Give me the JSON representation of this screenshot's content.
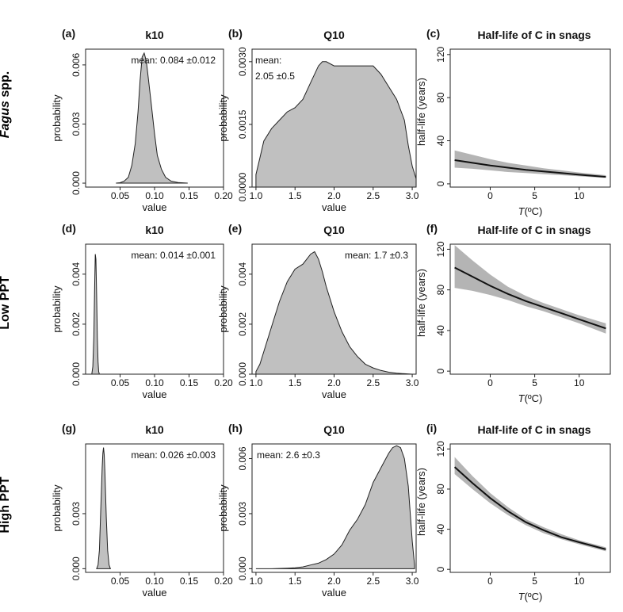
{
  "row_labels": [
    {
      "italic": "Fagus",
      "text": " spp."
    },
    {
      "italic": "",
      "text": "Low PPT"
    },
    {
      "italic": "",
      "text": "High PPT"
    }
  ],
  "chart_data": [
    {
      "id": "a",
      "panel_label": "(a)",
      "type": "area",
      "title": "k10",
      "xlabel": "value",
      "ylabel": "probability",
      "annotation": [
        "mean: 0.084 ±0.012"
      ],
      "xlim": [
        0.0,
        0.2
      ],
      "ylim": [
        -0.0002,
        0.0068
      ],
      "xticks": [
        0.05,
        0.1,
        0.15,
        0.2
      ],
      "xtick_labels": [
        "0.05",
        "0.10",
        "0.15",
        "0.20"
      ],
      "yticks": [
        0.0,
        0.003,
        0.006
      ],
      "ytick_labels": [
        "0.000",
        "0.003",
        "0.006"
      ],
      "x": [
        0.044,
        0.05,
        0.056,
        0.062,
        0.067,
        0.072,
        0.076,
        0.079,
        0.082,
        0.085,
        0.088,
        0.091,
        0.095,
        0.1,
        0.104,
        0.11,
        0.116,
        0.124,
        0.134,
        0.148
      ],
      "y": [
        0.0,
        2e-05,
        0.0001,
        0.0003,
        0.0009,
        0.002,
        0.0036,
        0.0052,
        0.0064,
        0.0066,
        0.0062,
        0.0053,
        0.0041,
        0.0025,
        0.0014,
        0.0007,
        0.0003,
        0.0001,
        3e-05,
        0.0
      ]
    },
    {
      "id": "b",
      "panel_label": "(b)",
      "type": "area",
      "title": "Q10",
      "xlabel": "value",
      "ylabel": "probability",
      "annotation": [
        "mean:",
        "2.05 ±0.5"
      ],
      "xlim": [
        0.95,
        3.05
      ],
      "ylim": [
        0.0,
        0.0033
      ],
      "xticks": [
        1.0,
        1.5,
        2.0,
        2.5,
        3.0
      ],
      "xtick_labels": [
        "1.0",
        "1.5",
        "2.0",
        "2.5",
        "3.0"
      ],
      "yticks": [
        0.0,
        0.0015,
        0.003
      ],
      "ytick_labels": [
        "0.0000",
        "0.0015",
        "0.0030"
      ],
      "x": [
        1.0,
        1.05,
        1.1,
        1.2,
        1.3,
        1.4,
        1.5,
        1.6,
        1.7,
        1.8,
        1.85,
        1.9,
        2.0,
        2.1,
        2.2,
        2.3,
        2.4,
        2.5,
        2.6,
        2.7,
        2.8,
        2.9,
        2.95,
        3.0,
        3.05
      ],
      "y": [
        0.0003,
        0.0007,
        0.0011,
        0.0014,
        0.0016,
        0.0018,
        0.0019,
        0.0021,
        0.0025,
        0.0029,
        0.003,
        0.003,
        0.0029,
        0.0029,
        0.0029,
        0.0029,
        0.0029,
        0.0029,
        0.0027,
        0.0024,
        0.0021,
        0.0016,
        0.001,
        0.0005,
        0.0002
      ]
    },
    {
      "id": "c",
      "panel_label": "(c)",
      "type": "line",
      "title": "Half-life of C in snags",
      "xlabel": "T(ºC)",
      "ylabel": "half-life (years)",
      "xlim": [
        -4.5,
        13.5
      ],
      "ylim": [
        -3,
        125
      ],
      "xticks": [
        0,
        5,
        10
      ],
      "xtick_labels": [
        "0",
        "5",
        "10"
      ],
      "yticks": [
        0,
        40,
        80,
        120
      ],
      "ytick_labels": [
        "0",
        "40",
        "80",
        "120"
      ],
      "x": [
        -4,
        -2,
        0,
        2,
        4,
        6,
        8,
        10,
        13
      ],
      "y": [
        22,
        19.5,
        17,
        15,
        13,
        11.5,
        10,
        8.5,
        6.5
      ],
      "lower": [
        15,
        14,
        12.5,
        11,
        10,
        9,
        8,
        7,
        5.5
      ],
      "upper": [
        31,
        27,
        23,
        19.5,
        17,
        14.5,
        12.5,
        10.5,
        8
      ]
    },
    {
      "id": "d",
      "panel_label": "(d)",
      "type": "area",
      "title": "k10",
      "xlabel": "value",
      "ylabel": "probability",
      "annotation": [
        "mean: 0.014 ±0.001"
      ],
      "xlim": [
        0.0,
        0.2
      ],
      "ylim": [
        0.0,
        0.0052
      ],
      "xticks": [
        0.05,
        0.1,
        0.15,
        0.2
      ],
      "xtick_labels": [
        "0.05",
        "0.10",
        "0.15",
        "0.20"
      ],
      "yticks": [
        0.0,
        0.002,
        0.004
      ],
      "ytick_labels": [
        "0.000",
        "0.002",
        "0.004"
      ],
      "x": [
        0.009,
        0.0105,
        0.012,
        0.013,
        0.014,
        0.015,
        0.016,
        0.017,
        0.018,
        0.019,
        0.02
      ],
      "y": [
        0.0,
        0.0003,
        0.0015,
        0.0033,
        0.0048,
        0.0046,
        0.0032,
        0.0015,
        0.0005,
        0.0001,
        0.0
      ]
    },
    {
      "id": "e",
      "panel_label": "(e)",
      "type": "area",
      "title": "Q10",
      "xlabel": "value",
      "ylabel": "probability",
      "annotation": [
        "mean: 1.7 ±0.3"
      ],
      "xlim": [
        0.95,
        3.05
      ],
      "ylim": [
        0.0,
        0.0052
      ],
      "xticks": [
        1.0,
        1.5,
        2.0,
        2.5,
        3.0
      ],
      "xtick_labels": [
        "1.0",
        "1.5",
        "2.0",
        "2.5",
        "3.0"
      ],
      "yticks": [
        0.0,
        0.002,
        0.004
      ],
      "ytick_labels": [
        "0.000",
        "0.002",
        "0.004"
      ],
      "x": [
        1.0,
        1.05,
        1.1,
        1.2,
        1.3,
        1.4,
        1.5,
        1.6,
        1.7,
        1.75,
        1.8,
        1.85,
        1.9,
        2.0,
        2.1,
        2.2,
        2.3,
        2.4,
        2.5,
        2.6,
        2.7,
        2.8,
        2.9,
        3.0
      ],
      "y": [
        0.0001,
        0.0004,
        0.0009,
        0.0019,
        0.0029,
        0.0037,
        0.0042,
        0.0044,
        0.0048,
        0.0049,
        0.0046,
        0.0041,
        0.0035,
        0.0025,
        0.0017,
        0.0011,
        0.0007,
        0.0004,
        0.00025,
        0.00015,
        8e-05,
        4e-05,
        2e-05,
        0.0
      ]
    },
    {
      "id": "f",
      "panel_label": "(f)",
      "type": "line",
      "title": "Half-life of C in snags",
      "xlabel": "T(ºC)",
      "ylabel": "half-life (years)",
      "xlim": [
        -4.5,
        13.5
      ],
      "ylim": [
        -3,
        125
      ],
      "xticks": [
        0,
        5,
        10
      ],
      "xtick_labels": [
        "0",
        "5",
        "10"
      ],
      "yticks": [
        0,
        40,
        80,
        120
      ],
      "ytick_labels": [
        "0",
        "40",
        "80",
        "120"
      ],
      "x": [
        -4,
        -2,
        0,
        2,
        4,
        6,
        8,
        10,
        13
      ],
      "y": [
        102,
        93,
        84,
        76,
        69,
        63,
        57,
        51,
        42
      ],
      "lower": [
        82,
        79,
        75,
        70,
        64,
        59,
        53,
        47,
        37
      ],
      "upper": [
        124,
        109,
        95,
        83,
        74,
        67,
        61,
        55,
        47
      ]
    },
    {
      "id": "g",
      "panel_label": "(g)",
      "type": "area",
      "title": "k10",
      "xlabel": "value",
      "ylabel": "probability",
      "annotation": [
        "mean: 0.026 ±0.003"
      ],
      "xlim": [
        0.0,
        0.2
      ],
      "ylim": [
        -0.0002,
        0.0068
      ],
      "xticks": [
        0.05,
        0.1,
        0.15,
        0.2
      ],
      "xtick_labels": [
        "0.05",
        "0.10",
        "0.15",
        "0.20"
      ],
      "yticks": [
        0.0,
        0.003
      ],
      "ytick_labels": [
        "0.000",
        "0.003"
      ],
      "x": [
        0.016,
        0.018,
        0.02,
        0.022,
        0.024,
        0.025,
        0.026,
        0.027,
        0.028,
        0.03,
        0.032,
        0.034,
        0.036
      ],
      "y": [
        0.0,
        0.0002,
        0.001,
        0.0032,
        0.0055,
        0.0063,
        0.0066,
        0.0062,
        0.0052,
        0.0028,
        0.001,
        0.0002,
        0.0
      ]
    },
    {
      "id": "h",
      "panel_label": "(h)",
      "type": "area",
      "title": "Q10",
      "xlabel": "value",
      "ylabel": "probability",
      "annotation": [
        "mean: 2.6 ±0.3"
      ],
      "xlim": [
        0.95,
        3.05
      ],
      "ylim": [
        -0.0002,
        0.0068
      ],
      "xticks": [
        1.0,
        1.5,
        2.0,
        2.5,
        3.0
      ],
      "xtick_labels": [
        "1.0",
        "1.5",
        "2.0",
        "2.5",
        "3.0"
      ],
      "yticks": [
        0.0,
        0.003,
        0.006
      ],
      "ytick_labels": [
        "0.000",
        "0.003",
        "0.006"
      ],
      "x": [
        1.0,
        1.2,
        1.4,
        1.5,
        1.6,
        1.7,
        1.8,
        1.9,
        2.0,
        2.1,
        2.2,
        2.3,
        2.4,
        2.5,
        2.6,
        2.7,
        2.75,
        2.8,
        2.85,
        2.9,
        2.95,
        3.0,
        3.03
      ],
      "y": [
        0.0,
        0.0,
        3e-05,
        5e-05,
        0.0001,
        0.0002,
        0.0003,
        0.0005,
        0.0008,
        0.0013,
        0.0021,
        0.0027,
        0.0035,
        0.0047,
        0.0055,
        0.0063,
        0.0066,
        0.0067,
        0.0066,
        0.006,
        0.0045,
        0.0015,
        0.0002
      ]
    },
    {
      "id": "i",
      "panel_label": "(i)",
      "type": "line",
      "title": "Half-life of C in snags",
      "xlabel": "T(ºC)",
      "ylabel": "half-life (years)",
      "xlim": [
        -4.5,
        13.5
      ],
      "ylim": [
        -3,
        125
      ],
      "xticks": [
        0,
        5,
        10
      ],
      "xtick_labels": [
        "0",
        "5",
        "10"
      ],
      "yticks": [
        0,
        40,
        80,
        120
      ],
      "ytick_labels": [
        "0",
        "40",
        "80",
        "120"
      ],
      "x": [
        -4,
        -2,
        0,
        2,
        4,
        6,
        8,
        10,
        13
      ],
      "y": [
        102,
        86,
        71,
        58,
        47,
        39,
        32,
        27,
        20
      ],
      "lower": [
        95,
        80,
        66,
        54,
        44,
        36,
        30,
        25,
        18
      ],
      "upper": [
        112,
        93,
        76,
        62,
        50,
        42,
        35,
        29,
        22
      ]
    }
  ]
}
